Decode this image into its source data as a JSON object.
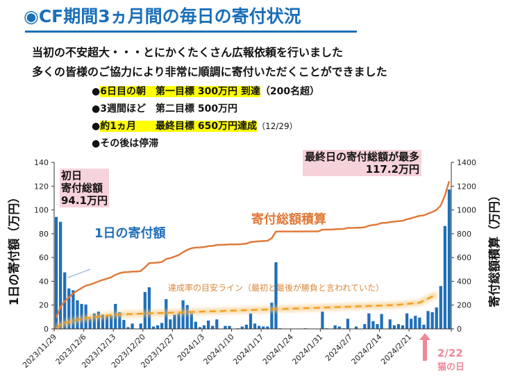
{
  "header": {
    "title": "◉CF期間3ヵ月間の毎日の寄付状況",
    "intro_lines": [
      "当初の不安超大・・・とにかくたくさん広報依頼を行いました",
      "多くの皆様のご協力により非常に順調に寄付いただくことができました"
    ],
    "bullets": [
      {
        "mark": "●",
        "highlight": "6日目の朝　第一目標 300万円 到達",
        "rest": "（200名超）",
        "rest_small": ""
      },
      {
        "mark": "●",
        "highlight": "",
        "rest": "3週間ほど　第二目標 500万円",
        "rest_small": ""
      },
      {
        "mark": "●",
        "highlight": "約1ヵ月　　最終目標 650万円達成",
        "rest": "",
        "rest_small": "（12/29）"
      },
      {
        "mark": "●",
        "highlight": "",
        "rest": "その後は停滞",
        "rest_small": ""
      }
    ]
  },
  "annotations": {
    "first_day": [
      "初日",
      "寄付総額",
      "94.1万円"
    ],
    "last_day": [
      "最終日の寄付総額が最多",
      "117.2万円"
    ],
    "daily_label": "1日の寄付額",
    "cumulative_label": "寄付総額積算",
    "target_label": "達成率の目安ライン（最初と最後が勝負と言われていた）",
    "cat_day": [
      "2/22",
      "猫の日"
    ]
  },
  "colors": {
    "bar": "#1f6fb8",
    "cumulative": "#e07a3a",
    "target": "#f0a020",
    "pink": "#f6d2da",
    "arrow": "#ee8899",
    "title": "#1a6fb8"
  },
  "chart_data": {
    "type": "bar+line",
    "title": "",
    "xlabel": "",
    "ylabel_left": "1日の寄付額（万円）",
    "ylabel_right": "寄付総額積算（万円）",
    "ylim_left": [
      0,
      140
    ],
    "ylim_right": [
      0,
      1400
    ],
    "yticks_left": [
      0,
      20,
      40,
      60,
      80,
      100,
      120,
      140
    ],
    "yticks_right": [
      0,
      200,
      400,
      600,
      800,
      1000,
      1200,
      1400
    ],
    "start_date": "2023/11/29",
    "x_tick_labels": [
      "2023/11/29",
      "2023/12/6",
      "2023/12/13",
      "2023/12/20",
      "2023/12/27",
      "2024/1/3",
      "2024/1/10",
      "2024/1/17",
      "2024/1/24",
      "2024/1/31",
      "2024/2/7",
      "2024/2/14",
      "2024/2/21"
    ],
    "x_tick_every_days": 7,
    "grid": false,
    "series": [
      {
        "name": "1日の寄付額",
        "axis": "left",
        "type": "bar",
        "values": [
          94.1,
          90,
          47.5,
          34,
          32.5,
          24,
          21,
          20.5,
          8.5,
          13,
          14.5,
          12,
          11,
          11,
          21,
          14,
          7.5,
          1.5,
          4.5,
          0,
          4.5,
          31,
          35,
          2,
          3,
          5,
          25,
          8,
          12,
          13,
          24,
          20,
          13,
          6,
          1.5,
          3,
          7,
          2.5,
          8,
          0,
          2.5,
          2.5,
          0,
          0.5,
          2,
          3.5,
          13,
          4.5,
          2.5,
          2,
          2,
          22,
          56,
          0.5,
          0,
          0,
          0,
          0,
          0,
          0.5,
          0,
          0,
          0,
          14.5,
          0.5,
          0,
          3,
          2,
          0.5,
          8.5,
          0,
          2,
          0,
          4,
          13,
          6.5,
          4,
          12.5,
          0,
          8,
          3,
          4,
          3,
          13,
          8.5,
          11,
          9.5,
          3.5,
          15,
          14,
          18,
          36,
          86.5,
          117.2
        ]
      },
      {
        "name": "寄付総額積算",
        "axis": "right",
        "type": "line",
        "cumulative_of": "1日の寄付額"
      },
      {
        "name": "達成率の目安ライン",
        "axis": "right",
        "type": "dashed-line",
        "values_at_days": {
          "0": 0,
          "7": 90,
          "14": 120,
          "30": 140,
          "60": 175,
          "80": 200,
          "86": 220,
          "90": 290
        }
      }
    ]
  }
}
